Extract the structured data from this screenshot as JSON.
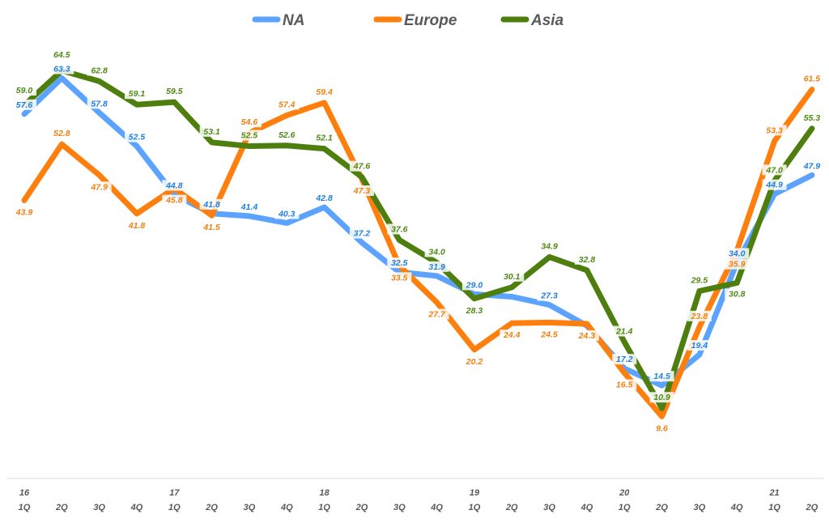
{
  "chart_data": {
    "type": "line",
    "title": "",
    "xlabel": "",
    "ylabel": "",
    "ylim": [
      0,
      75
    ],
    "grid": false,
    "legend_position": "top",
    "categories": [
      [
        "16",
        "1Q"
      ],
      [
        "",
        "2Q"
      ],
      [
        "",
        "3Q"
      ],
      [
        "",
        "4Q"
      ],
      [
        "17",
        "1Q"
      ],
      [
        "",
        "2Q"
      ],
      [
        "",
        "3Q"
      ],
      [
        "",
        "4Q"
      ],
      [
        "18",
        "1Q"
      ],
      [
        "",
        "2Q"
      ],
      [
        "",
        "3Q"
      ],
      [
        "",
        "4Q"
      ],
      [
        "19",
        "1Q"
      ],
      [
        "",
        "2Q"
      ],
      [
        "",
        "3Q"
      ],
      [
        "",
        "4Q"
      ],
      [
        "20",
        "1Q"
      ],
      [
        "",
        "2Q"
      ],
      [
        "",
        "3Q"
      ],
      [
        "",
        "4Q"
      ],
      [
        "21",
        "1Q"
      ],
      [
        "",
        "2Q"
      ]
    ],
    "series": [
      {
        "name": "NA",
        "color": "#5BA3FF",
        "label_color": "#1F7FE0",
        "values": [
          57.6,
          63.3,
          57.8,
          52.5,
          44.8,
          41.8,
          41.4,
          40.3,
          42.8,
          37.2,
          32.5,
          31.9,
          29.0,
          28.6,
          27.3,
          24.0,
          17.2,
          14.5,
          19.4,
          34.0,
          44.9,
          47.9
        ],
        "labels": [
          "57.6",
          "63.3",
          "57.8",
          "52.5",
          "44.8",
          "41.8",
          "41.4",
          "40.3",
          "42.8",
          "37.2",
          "32.5",
          "31.9",
          "29.0",
          "",
          "27.3",
          "",
          "17.2",
          "14.5",
          "19.4",
          "34.0",
          "44.9",
          "47.9"
        ]
      },
      {
        "name": "Europe",
        "color": "#FF7F0E",
        "label_color": "#F08010",
        "values": [
          43.9,
          52.8,
          47.9,
          41.8,
          45.8,
          41.5,
          54.6,
          57.4,
          59.4,
          47.3,
          33.5,
          27.7,
          20.2,
          24.4,
          24.5,
          24.3,
          16.5,
          9.6,
          23.8,
          35.9,
          53.3,
          61.5
        ],
        "labels": [
          "43.9",
          "52.8",
          "47.9",
          "41.8",
          "45.8",
          "41.5",
          "54.6",
          "57.4",
          "59.4",
          "47.3",
          "33.5",
          "27.7",
          "20.2",
          "24.4",
          "24.5",
          "24.3",
          "16.5",
          "9.6",
          "23.8",
          "35.9",
          "53.3",
          "61.5"
        ]
      },
      {
        "name": "Asia",
        "color": "#4E7F0E",
        "label_color": "#4E8A12",
        "values": [
          59.0,
          64.5,
          62.8,
          59.1,
          59.5,
          53.1,
          52.5,
          52.6,
          52.1,
          47.6,
          37.6,
          34.0,
          28.3,
          30.1,
          34.9,
          32.8,
          21.4,
          10.9,
          29.5,
          30.8,
          47.0,
          55.3
        ],
        "labels": [
          "59.0",
          "64.5",
          "62.8",
          "59.1",
          "59.5",
          "53.1",
          "52.5",
          "52.6",
          "52.1",
          "47.6",
          "37.6",
          "34.0",
          "28.3",
          "30.1",
          "34.9",
          "32.8",
          "21.4",
          "10.9",
          "29.5",
          "30.8",
          "47.0",
          "55.3"
        ]
      }
    ]
  }
}
